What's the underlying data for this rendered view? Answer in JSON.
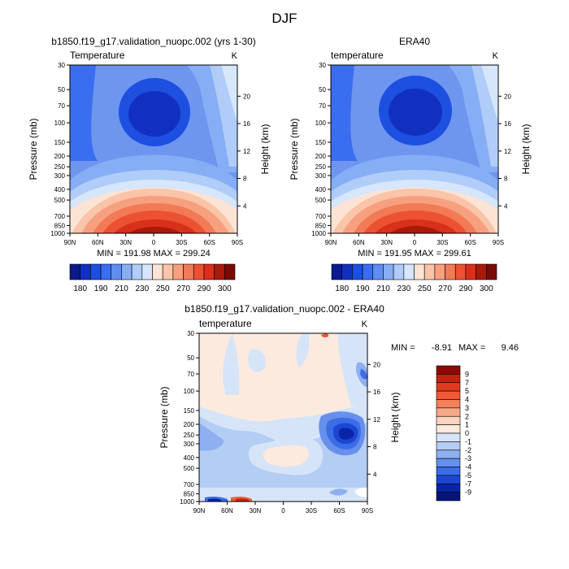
{
  "figure": {
    "season": "DJF",
    "min_label": "MIN =",
    "max_label": "MAX =",
    "panels": [
      {
        "title": "b1850.f19_g17.validation_nuopc.002 (yrs 1-30)",
        "field": "Temperature",
        "units": "K",
        "summary": "MIN = 191.98   MAX = 299.24"
      },
      {
        "title": "ERA40",
        "field": "temperature",
        "units": "K",
        "summary": "MIN = 191.95   MAX = 299.61"
      },
      {
        "title": "b1850.f19_g17.validation_nuopc.002 - ERA40",
        "field": "temperature",
        "units": "K",
        "min": "-8.91",
        "max": "9.46"
      }
    ]
  },
  "axis_labels": {
    "y_left": "Pressure (mb)",
    "y_right": "Height (km)"
  },
  "chart_data": [
    {
      "type": "heatmap",
      "title": "b1850.f19_g17.validation_nuopc.002 (yrs 1-30)",
      "field": "Temperature",
      "units": "K",
      "x": [
        "90N",
        "60N",
        "30N",
        "0",
        "30S",
        "60S",
        "90S"
      ],
      "y_pressure": [
        "30",
        "50",
        "70",
        "100",
        "150",
        "200",
        "250",
        "300",
        "400",
        "500",
        "700",
        "850",
        "1000"
      ],
      "y_height_km": [
        "20",
        "16",
        "12",
        "8",
        "4"
      ],
      "min": 191.98,
      "max": 299.24,
      "colorbar_levels": [
        "180",
        "190",
        "210",
        "230",
        "250",
        "270",
        "290",
        "300"
      ]
    },
    {
      "type": "heatmap",
      "title": "ERA40",
      "field": "temperature",
      "units": "K",
      "x": [
        "90N",
        "60N",
        "30N",
        "0",
        "30S",
        "60S",
        "90S"
      ],
      "y_pressure": [
        "30",
        "50",
        "70",
        "100",
        "150",
        "200",
        "250",
        "300",
        "400",
        "500",
        "700",
        "850",
        "1000"
      ],
      "y_height_km": [
        "20",
        "16",
        "12",
        "8",
        "4"
      ],
      "min": 191.95,
      "max": 299.61,
      "colorbar_levels": [
        "180",
        "190",
        "210",
        "230",
        "250",
        "270",
        "290",
        "300"
      ]
    },
    {
      "type": "heatmap",
      "title": "b1850.f19_g17.validation_nuopc.002 - ERA40",
      "field": "temperature",
      "units": "K",
      "x": [
        "90N",
        "60N",
        "30N",
        "0",
        "30S",
        "60S",
        "90S"
      ],
      "y_pressure": [
        "30",
        "50",
        "70",
        "100",
        "150",
        "200",
        "250",
        "300",
        "400",
        "500",
        "700",
        "850",
        "1000"
      ],
      "y_height_km": [
        "20",
        "16",
        "12",
        "8",
        "4"
      ],
      "min": -8.91,
      "max": 9.46,
      "colorbar_levels": [
        "9",
        "7",
        "5",
        "4",
        "3",
        "2",
        "1",
        "0",
        "-1",
        "-2",
        "-3",
        "-4",
        "-5",
        "-7",
        "-9"
      ]
    }
  ],
  "colors": {
    "temp_scale": [
      "#0a1a8c",
      "#1230c0",
      "#1d4fe0",
      "#3a6ef0",
      "#5e8ef2",
      "#86aef5",
      "#b0ccf8",
      "#d6e6fb",
      "#fde3d4",
      "#f9c4a8",
      "#f6a080",
      "#f27a56",
      "#ec5232",
      "#d8301a",
      "#a81a0a",
      "#7a0a05"
    ],
    "diff_scale": [
      "#8c0a05",
      "#c0250f",
      "#de3a1e",
      "#f05a32",
      "#f5805a",
      "#f8a888",
      "#fcd3bf",
      "#fdeadf",
      "#d6e4f8",
      "#b4cdf4",
      "#8eaff0",
      "#6690ec",
      "#3c6ce6",
      "#1c46d2",
      "#0a24a8",
      "#061478"
    ]
  }
}
